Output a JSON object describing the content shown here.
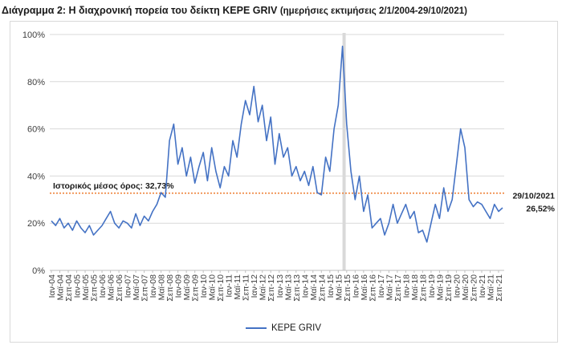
{
  "title": {
    "main": "Διάγραμμα 2: Η διαχρονική πορεία του δείκτη KEPE GRIV",
    "sub": "(ημερήσιες εκτιμήσεις 2/1/2004-29/10/2021)"
  },
  "colors": {
    "series": "#4472c4",
    "mean_line": "#ed7d31",
    "grid": "#d9d9d9",
    "shade": "#d9d9d9"
  },
  "chart_data": {
    "type": "line",
    "title": "Διάγραμμα 2: Η διαχρονική πορεία του δείκτη KEPE GRIV",
    "subtitle": "(ημερήσιες εκτιμήσεις 2/1/2004-29/10/2021)",
    "xlabel": "",
    "ylabel": "",
    "ylim": [
      0,
      100
    ],
    "y_ticks": [
      "0%",
      "20%",
      "40%",
      "60%",
      "80%",
      "100%"
    ],
    "y_tick_values": [
      0,
      20,
      40,
      60,
      80,
      100
    ],
    "grid": "horizontal",
    "legend": "bottom",
    "x_tick_labels": [
      "Ιαν-04",
      "Μαϊ-04",
      "Σεπ-04",
      "Ιαν-05",
      "Μαϊ-05",
      "Σεπ-05",
      "Ιαν-06",
      "Μαϊ-06",
      "Σεπ-06",
      "Ιαν-07",
      "Μαϊ-07",
      "Σεπ-07",
      "Ιαν-08",
      "Μαϊ-08",
      "Σεπ-08",
      "Ιαν-09",
      "Μαϊ-09",
      "Σεπ-09",
      "Ιαν-10",
      "Μαϊ-10",
      "Σεπ-10",
      "Ιαν-11",
      "Μαϊ-11",
      "Σεπ-11",
      "Ιαν-12",
      "Μαϊ-12",
      "Σεπ-12",
      "Ιαν-13",
      "Μαϊ-13",
      "Σεπ-13",
      "Ιαν-14",
      "Μαϊ-14",
      "Σεπ-14",
      "Ιαν-15",
      "Μαϊ-15",
      "Σεπ-15",
      "Ιαν-16",
      "Μαϊ-16",
      "Σεπ-16",
      "Ιαν-17",
      "Μαϊ-17",
      "Σεπ-17",
      "Ιαν-18",
      "Μαϊ-18",
      "Σεπ-18",
      "Ιαν-19",
      "Μαϊ-19",
      "Σεπ-19",
      "Ιαν-20",
      "Μαϊ-20",
      "Σεπ-20",
      "Ιαν-21",
      "Μαϊ-21",
      "Σεπ-21"
    ],
    "shaded_period": [
      "Ιουλ-15",
      "Αυγ-15"
    ],
    "series": [
      {
        "name": "KEPE GRIV",
        "x": [
          "Ιαν-04",
          "Μαρ-04",
          "Μαϊ-04",
          "Ιουλ-04",
          "Σεπ-04",
          "Νοε-04",
          "Ιαν-05",
          "Μαρ-05",
          "Μαϊ-05",
          "Ιουλ-05",
          "Σεπ-05",
          "Νοε-05",
          "Ιαν-06",
          "Μαρ-06",
          "Μαϊ-06",
          "Ιουλ-06",
          "Σεπ-06",
          "Νοε-06",
          "Ιαν-07",
          "Μαρ-07",
          "Μαϊ-07",
          "Ιουλ-07",
          "Σεπ-07",
          "Νοε-07",
          "Ιαν-08",
          "Μαρ-08",
          "Μαϊ-08",
          "Ιουλ-08",
          "Σεπ-08",
          "Νοε-08",
          "Ιαν-09",
          "Μαρ-09",
          "Μαϊ-09",
          "Ιουλ-09",
          "Σεπ-09",
          "Νοε-09",
          "Ιαν-10",
          "Μαρ-10",
          "Μαϊ-10",
          "Ιουλ-10",
          "Σεπ-10",
          "Νοε-10",
          "Ιαν-11",
          "Μαρ-11",
          "Μαϊ-11",
          "Ιουλ-11",
          "Σεπ-11",
          "Νοε-11",
          "Ιαν-12",
          "Μαρ-12",
          "Μαϊ-12",
          "Ιουλ-12",
          "Σεπ-12",
          "Νοε-12",
          "Ιαν-13",
          "Μαρ-13",
          "Μαϊ-13",
          "Ιουλ-13",
          "Σεπ-13",
          "Νοε-13",
          "Ιαν-14",
          "Μαρ-14",
          "Μαϊ-14",
          "Ιουλ-14",
          "Σεπ-14",
          "Νοε-14",
          "Ιαν-15",
          "Μαρ-15",
          "Μαϊ-15",
          "Ιουλ-15",
          "Σεπ-15",
          "Νοε-15",
          "Ιαν-16",
          "Μαρ-16",
          "Μαϊ-16",
          "Ιουλ-16",
          "Σεπ-16",
          "Νοε-16",
          "Ιαν-17",
          "Μαρ-17",
          "Μαϊ-17",
          "Ιουλ-17",
          "Σεπ-17",
          "Νοε-17",
          "Ιαν-18",
          "Μαρ-18",
          "Μαϊ-18",
          "Ιουλ-18",
          "Σεπ-18",
          "Νοε-18",
          "Ιαν-19",
          "Μαρ-19",
          "Μαϊ-19",
          "Ιουλ-19",
          "Σεπ-19",
          "Νοε-19",
          "Ιαν-20",
          "Μαρ-20",
          "Μαϊ-20",
          "Ιουλ-20",
          "Σεπ-20",
          "Νοε-20",
          "Ιαν-21",
          "Μαρ-21",
          "Μαϊ-21",
          "Ιουλ-21",
          "Σεπ-21",
          "Οκτ-21"
        ],
        "values": [
          21,
          19,
          22,
          18,
          20,
          17,
          21,
          18,
          16,
          19,
          15,
          17,
          19,
          22,
          25,
          20,
          18,
          21,
          20,
          18,
          24,
          19,
          23,
          21,
          25,
          28,
          33,
          31,
          55,
          62,
          45,
          52,
          40,
          48,
          37,
          44,
          50,
          38,
          52,
          42,
          35,
          44,
          40,
          55,
          48,
          62,
          72,
          66,
          78,
          63,
          70,
          55,
          65,
          45,
          58,
          48,
          52,
          40,
          44,
          38,
          42,
          36,
          44,
          33,
          32,
          48,
          42,
          60,
          70,
          95,
          62,
          42,
          30,
          40,
          25,
          32,
          18,
          20,
          22,
          15,
          20,
          28,
          20,
          24,
          28,
          22,
          25,
          16,
          17,
          12,
          20,
          28,
          22,
          35,
          25,
          30,
          45,
          60,
          52,
          30,
          27,
          29,
          28,
          25,
          22,
          28,
          25,
          26.52
        ]
      }
    ],
    "mean_line": {
      "value": 32.73,
      "label": "Ιστορικός μέσος όρος: 32,73%"
    },
    "end_annotation": {
      "x": "29/10/2021",
      "value": 26.52,
      "label_date": "29/10/2021",
      "label_value": "26,52%"
    }
  }
}
